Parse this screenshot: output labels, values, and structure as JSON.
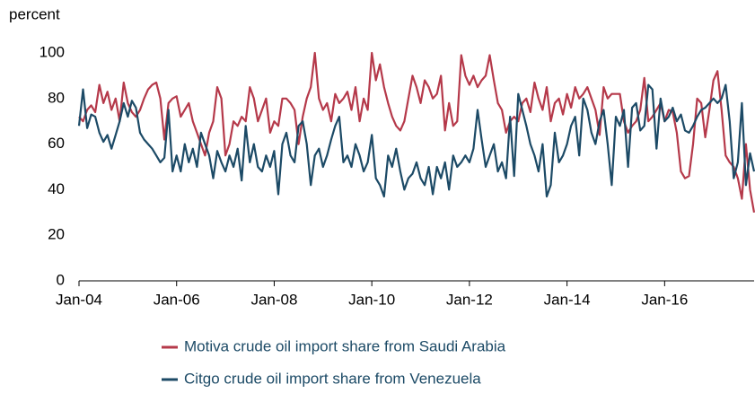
{
  "chart_data": {
    "type": "line",
    "y_axis_label": "percent",
    "x": [
      "2004-01",
      "2004-02",
      "2004-03",
      "2004-04",
      "2004-05",
      "2004-06",
      "2004-07",
      "2004-08",
      "2004-09",
      "2004-10",
      "2004-11",
      "2004-12",
      "2005-01",
      "2005-02",
      "2005-03",
      "2005-04",
      "2005-05",
      "2005-06",
      "2005-07",
      "2005-08",
      "2005-09",
      "2005-10",
      "2005-11",
      "2005-12",
      "2006-01",
      "2006-02",
      "2006-03",
      "2006-04",
      "2006-05",
      "2006-06",
      "2006-07",
      "2006-08",
      "2006-09",
      "2006-10",
      "2006-11",
      "2006-12",
      "2007-01",
      "2007-02",
      "2007-03",
      "2007-04",
      "2007-05",
      "2007-06",
      "2007-07",
      "2007-08",
      "2007-09",
      "2007-10",
      "2007-11",
      "2007-12",
      "2008-01",
      "2008-02",
      "2008-03",
      "2008-04",
      "2008-05",
      "2008-06",
      "2008-07",
      "2008-08",
      "2008-09",
      "2008-10",
      "2008-11",
      "2008-12",
      "2009-01",
      "2009-02",
      "2009-03",
      "2009-04",
      "2009-05",
      "2009-06",
      "2009-07",
      "2009-08",
      "2009-09",
      "2009-10",
      "2009-11",
      "2009-12",
      "2010-01",
      "2010-02",
      "2010-03",
      "2010-04",
      "2010-05",
      "2010-06",
      "2010-07",
      "2010-08",
      "2010-09",
      "2010-10",
      "2010-11",
      "2010-12",
      "2011-01",
      "2011-02",
      "2011-03",
      "2011-04",
      "2011-05",
      "2011-06",
      "2011-07",
      "2011-08",
      "2011-09",
      "2011-10",
      "2011-11",
      "2011-12",
      "2012-01",
      "2012-02",
      "2012-03",
      "2012-04",
      "2012-05",
      "2012-06",
      "2012-07",
      "2012-08",
      "2012-09",
      "2012-10",
      "2012-11",
      "2012-12",
      "2013-01",
      "2013-02",
      "2013-03",
      "2013-04",
      "2013-05",
      "2013-06",
      "2013-07",
      "2013-08",
      "2013-09",
      "2013-10",
      "2013-11",
      "2013-12",
      "2014-01",
      "2014-02",
      "2014-03",
      "2014-04",
      "2014-05",
      "2014-06",
      "2014-07",
      "2014-08",
      "2014-09",
      "2014-10",
      "2014-11",
      "2014-12",
      "2015-01",
      "2015-02",
      "2015-03",
      "2015-04",
      "2015-05",
      "2015-06",
      "2015-07",
      "2015-08",
      "2015-09",
      "2015-10",
      "2015-11",
      "2015-12",
      "2016-01",
      "2016-02",
      "2016-03",
      "2016-04",
      "2016-05",
      "2016-06",
      "2016-07",
      "2016-08",
      "2016-09",
      "2016-10",
      "2016-11",
      "2016-12",
      "2017-01",
      "2017-02",
      "2017-03",
      "2017-04",
      "2017-05",
      "2017-06",
      "2017-07",
      "2017-08",
      "2017-09",
      "2017-10",
      "2017-11"
    ],
    "series": [
      {
        "name": "Motiva crude oil import share from Saudi Arabia",
        "color": "#b5394a",
        "values": [
          72,
          70,
          75,
          77,
          74,
          86,
          78,
          83,
          75,
          80,
          70,
          87,
          78,
          74,
          72,
          75,
          80,
          84,
          86,
          87,
          80,
          62,
          78,
          80,
          81,
          72,
          75,
          78,
          70,
          65,
          60,
          55,
          65,
          70,
          85,
          80,
          55,
          60,
          70,
          68,
          72,
          70,
          85,
          80,
          70,
          75,
          80,
          65,
          70,
          68,
          80,
          80,
          78,
          75,
          60,
          72,
          80,
          85,
          100,
          80,
          75,
          78,
          70,
          82,
          78,
          80,
          83,
          75,
          85,
          70,
          80,
          75,
          100,
          88,
          95,
          85,
          78,
          72,
          68,
          66,
          70,
          80,
          90,
          85,
          78,
          88,
          85,
          80,
          82,
          90,
          66,
          78,
          68,
          70,
          99,
          90,
          86,
          90,
          85,
          88,
          90,
          99,
          88,
          78,
          75,
          65,
          70,
          72,
          70,
          78,
          80,
          74,
          87,
          80,
          75,
          85,
          70,
          78,
          80,
          73,
          82,
          76,
          85,
          80,
          82,
          85,
          80,
          75,
          64,
          85,
          80,
          82,
          82,
          82,
          70,
          65,
          68,
          70,
          75,
          89,
          70,
          72,
          75,
          78,
          70,
          75,
          74,
          65,
          48,
          45,
          46,
          60,
          80,
          78,
          63,
          75,
          88,
          92,
          75,
          55,
          52,
          50,
          45,
          36,
          60,
          40,
          30
        ]
      },
      {
        "name": "Citgo crude oil import share from Venezuela",
        "color": "#1c4a66",
        "values": [
          68,
          84,
          67,
          73,
          72,
          65,
          61,
          64,
          58,
          64,
          70,
          78,
          72,
          79,
          76,
          65,
          62,
          60,
          58,
          55,
          52,
          54,
          75,
          48,
          55,
          48,
          60,
          52,
          58,
          50,
          65,
          60,
          55,
          45,
          57,
          52,
          48,
          55,
          50,
          58,
          44,
          68,
          52,
          60,
          50,
          48,
          55,
          50,
          57,
          38,
          60,
          65,
          55,
          52,
          68,
          70,
          60,
          42,
          55,
          58,
          50,
          55,
          62,
          68,
          72,
          52,
          55,
          50,
          60,
          55,
          48,
          52,
          64,
          45,
          42,
          37,
          55,
          50,
          58,
          48,
          40,
          45,
          47,
          52,
          45,
          42,
          50,
          38,
          50,
          45,
          52,
          40,
          55,
          50,
          52,
          55,
          52,
          58,
          75,
          62,
          50,
          55,
          60,
          48,
          52,
          45,
          72,
          46,
          82,
          75,
          68,
          60,
          55,
          48,
          60,
          37,
          42,
          65,
          52,
          55,
          60,
          68,
          72,
          55,
          80,
          75,
          65,
          60,
          70,
          75,
          60,
          42,
          72,
          68,
          75,
          50,
          76,
          78,
          66,
          68,
          86,
          84,
          58,
          80,
          70,
          72,
          76,
          70,
          73,
          66,
          65,
          68,
          72,
          75,
          76,
          78,
          80,
          78,
          80,
          86,
          70,
          45,
          52,
          78,
          42,
          56,
          48
        ]
      }
    ],
    "xlim": [
      "2004-01",
      "2017-11"
    ],
    "xticks": [
      {
        "value": "2004-01",
        "label": "Jan-04"
      },
      {
        "value": "2006-01",
        "label": "Jan-06"
      },
      {
        "value": "2008-01",
        "label": "Jan-08"
      },
      {
        "value": "2010-01",
        "label": "Jan-10"
      },
      {
        "value": "2012-01",
        "label": "Jan-12"
      },
      {
        "value": "2014-01",
        "label": "Jan-14"
      },
      {
        "value": "2016-01",
        "label": "Jan-16"
      }
    ],
    "ylim": [
      0,
      100
    ],
    "yticks": [
      0,
      20,
      40,
      60,
      80,
      100
    ],
    "grid": false
  }
}
